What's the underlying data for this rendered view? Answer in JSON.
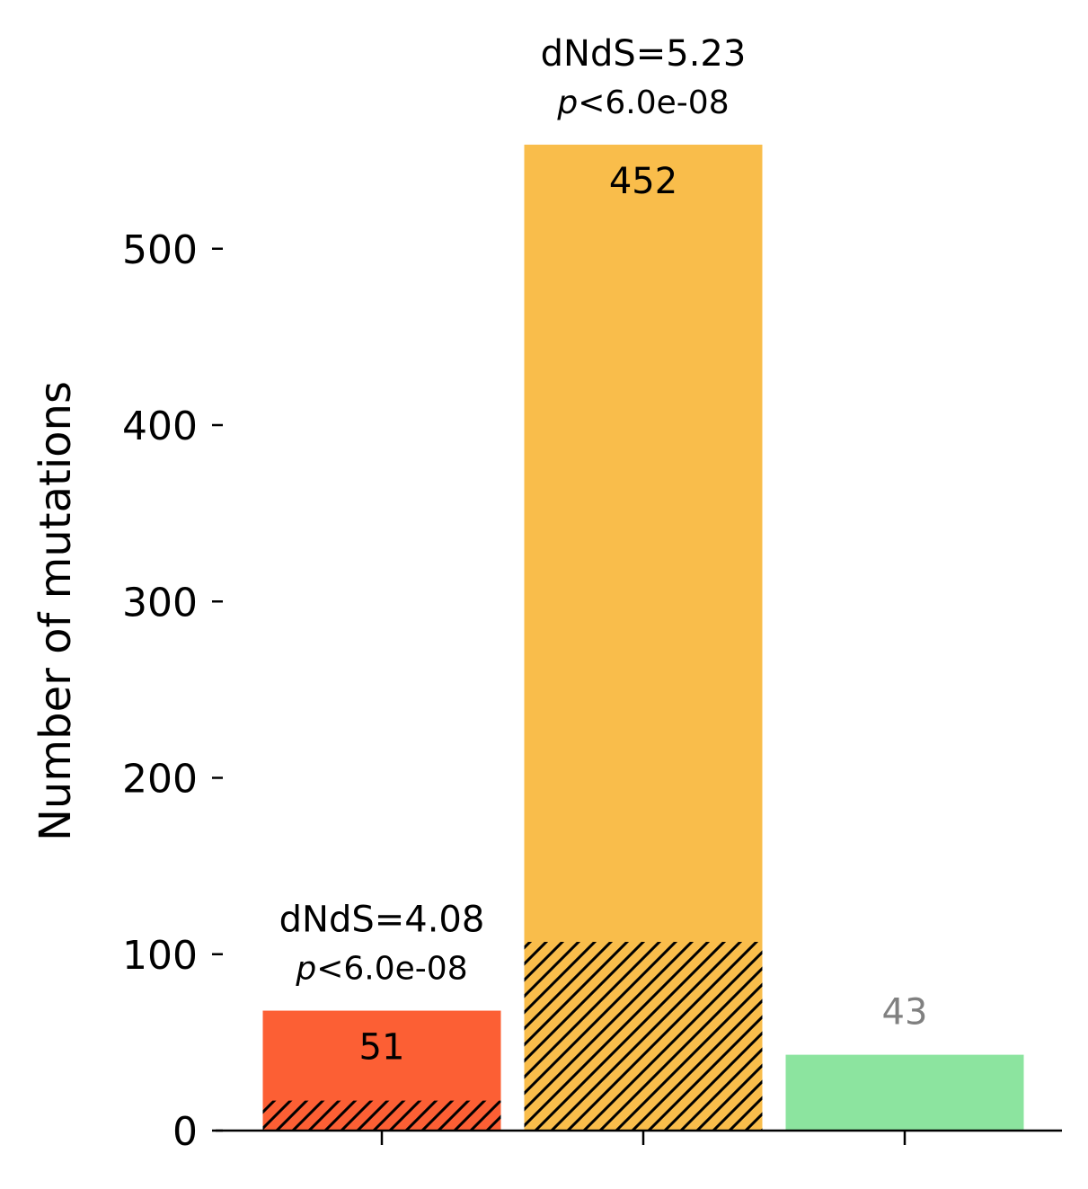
{
  "chart_data": {
    "type": "bar",
    "title": "",
    "xlabel": "",
    "ylabel": "Number of mutations",
    "ylim": [
      0,
      560
    ],
    "yticks": [
      0,
      100,
      200,
      300,
      400,
      500
    ],
    "ytick_labels": [
      "0",
      "100",
      "200",
      "300",
      "400",
      "500"
    ],
    "grid": false,
    "legend": "none",
    "bars": [
      {
        "total": 68,
        "hatched": 17,
        "color": "#fc5f34",
        "label": "51",
        "label_color": "#000000",
        "annotation": {
          "dnds": "dNdS=4.08",
          "p_symbol": "p",
          "p_rest": "<6.0e-08"
        }
      },
      {
        "total": 559,
        "hatched": 107,
        "color": "#f9bd4b",
        "label": "452",
        "label_color": "#000000",
        "annotation": {
          "dnds": "dNdS=5.23",
          "p_symbol": "p",
          "p_rest": "<6.0e-08"
        }
      },
      {
        "total": 43,
        "hatched": 0,
        "color": "#8ce49f",
        "label": "43",
        "label_color": "#808080",
        "annotation": null
      }
    ]
  }
}
